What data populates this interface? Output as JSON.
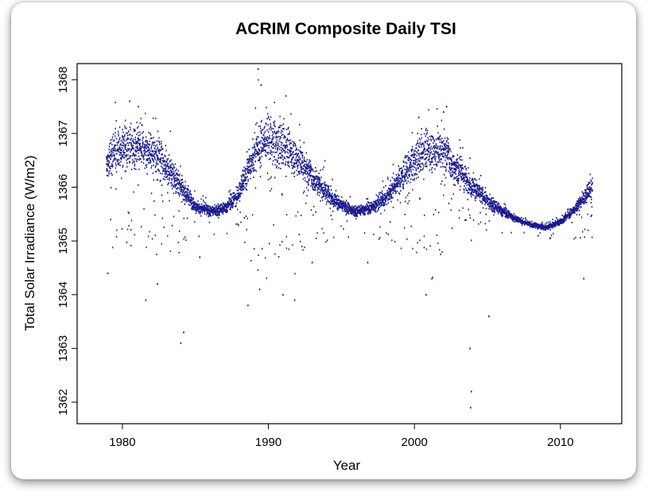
{
  "chart_data": {
    "type": "scatter",
    "title": "ACRIM Composite Daily TSI",
    "xlabel": "Year",
    "ylabel": "Total Solar Irradiance (W/m2)",
    "xlim": [
      1976.9,
      2014.2
    ],
    "ylim": [
      1361.6,
      1368.3
    ],
    "xticks": [
      1980,
      1990,
      2000,
      2010
    ],
    "yticks": [
      1362,
      1363,
      1364,
      1365,
      1366,
      1367,
      1368
    ],
    "grid": false,
    "legend": "none",
    "point_color": "#1a1a8c",
    "x_range_of_data": [
      1978.9,
      2012.2
    ],
    "baseline_curve": {
      "x": [
        1978.9,
        1979.5,
        1980.5,
        1981.5,
        1982.5,
        1983.5,
        1984.3,
        1985.0,
        1986.0,
        1987.0,
        1987.8,
        1988.6,
        1989.3,
        1990.0,
        1991.0,
        1992.0,
        1993.0,
        1994.0,
        1995.0,
        1996.0,
        1997.0,
        1998.0,
        1999.0,
        2000.0,
        2001.0,
        2002.0,
        2003.0,
        2004.0,
        2005.0,
        2006.0,
        2007.0,
        2008.0,
        2009.0,
        2010.0,
        2011.0,
        2012.2
      ],
      "y": [
        1366.4,
        1366.7,
        1366.75,
        1366.7,
        1366.55,
        1366.2,
        1365.9,
        1365.65,
        1365.55,
        1365.6,
        1365.8,
        1366.3,
        1366.8,
        1366.9,
        1366.75,
        1366.55,
        1366.2,
        1365.9,
        1365.65,
        1365.55,
        1365.6,
        1365.8,
        1366.15,
        1366.5,
        1366.7,
        1366.7,
        1366.3,
        1366.0,
        1365.75,
        1365.55,
        1365.4,
        1365.3,
        1365.25,
        1365.35,
        1365.6,
        1366.0
      ]
    },
    "notable_dips": [
      {
        "x": 1979.0,
        "y": 1364.4
      },
      {
        "x": 1981.6,
        "y": 1363.9
      },
      {
        "x": 1982.4,
        "y": 1364.2
      },
      {
        "x": 1984.0,
        "y": 1363.1
      },
      {
        "x": 1984.2,
        "y": 1363.3
      },
      {
        "x": 1985.3,
        "y": 1364.7
      },
      {
        "x": 1988.6,
        "y": 1363.8
      },
      {
        "x": 1989.4,
        "y": 1364.1
      },
      {
        "x": 1991.0,
        "y": 1364.0
      },
      {
        "x": 1991.8,
        "y": 1363.9
      },
      {
        "x": 1993.0,
        "y": 1364.6
      },
      {
        "x": 1996.8,
        "y": 1364.6
      },
      {
        "x": 2000.8,
        "y": 1364.0
      },
      {
        "x": 2001.2,
        "y": 1364.3
      },
      {
        "x": 2003.8,
        "y": 1363.0
      },
      {
        "x": 2003.9,
        "y": 1362.2
      },
      {
        "x": 2003.85,
        "y": 1361.9
      },
      {
        "x": 2005.1,
        "y": 1363.6
      },
      {
        "x": 2011.6,
        "y": 1364.3
      }
    ],
    "notable_peaks": [
      {
        "x": 1980.5,
        "y": 1367.6
      },
      {
        "x": 1981.1,
        "y": 1367.5
      },
      {
        "x": 1989.3,
        "y": 1368.2
      },
      {
        "x": 1989.5,
        "y": 1367.9
      },
      {
        "x": 1991.2,
        "y": 1367.7
      },
      {
        "x": 2002.2,
        "y": 1367.5
      },
      {
        "x": 2002.0,
        "y": 1367.4
      },
      {
        "x": 2000.3,
        "y": 1367.3
      }
    ]
  }
}
